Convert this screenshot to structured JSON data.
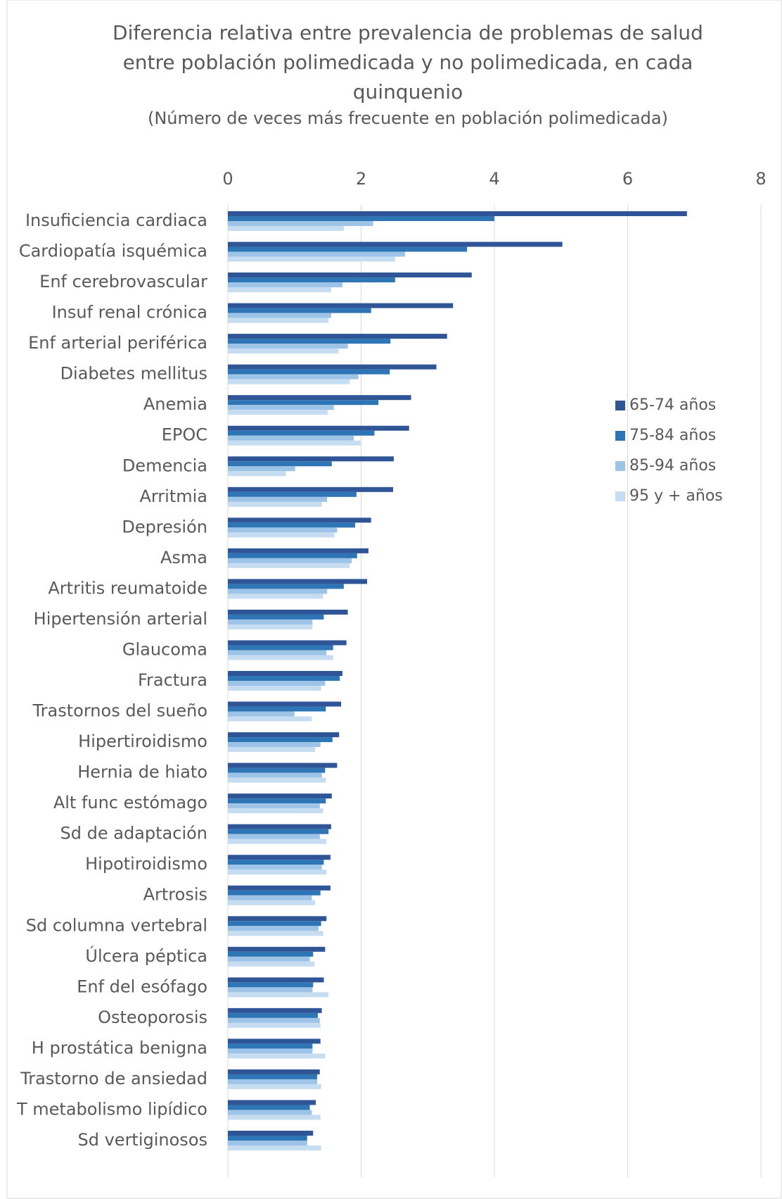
{
  "chart_data": {
    "type": "bar",
    "orientation": "horizontal",
    "title": "Diferencia relativa entre prevalencia de problemas de salud entre población polimedicada y no polimedicada, en cada quinquenio",
    "subtitle": "(Número de veces más frecuente en población polimedicada)",
    "categories": [
      "Insuficiencia cardiaca",
      "Cardiopatía isquémica",
      "Enf cerebrovascular",
      "Insuf renal crónica",
      "Enf arterial periférica",
      "Diabetes mellitus",
      "Anemia",
      "EPOC",
      "Demencia",
      "Arritmia",
      "Depresión",
      "Asma",
      "Artritis reumatoide",
      "Hipertensión arterial",
      "Glaucoma",
      "Fractura",
      "Trastornos del sueño",
      "Hipertiroidismo",
      "Hernia de hiato",
      "Alt func estómago",
      "Sd de adaptación",
      "Hipotiroidismo",
      "Artrosis",
      "Sd columna vertebral",
      "Úlcera péptica",
      "Enf del esófago",
      "Osteoporosis",
      "H prostática benigna",
      "Trastorno de ansiedad",
      "T metabolismo lipídico",
      "Sd vertiginosos"
    ],
    "series": [
      {
        "name": "65-74 años",
        "color": "#2f5597",
        "values": [
          6.89,
          5.02,
          3.66,
          3.38,
          3.29,
          3.13,
          2.75,
          2.72,
          2.49,
          2.48,
          2.15,
          2.11,
          2.09,
          1.8,
          1.78,
          1.72,
          1.7,
          1.67,
          1.64,
          1.56,
          1.55,
          1.54,
          1.54,
          1.48,
          1.46,
          1.44,
          1.41,
          1.39,
          1.38,
          1.32,
          1.28
        ]
      },
      {
        "name": "75-84 años",
        "color": "#2e75b6",
        "values": [
          4.0,
          3.59,
          2.51,
          2.15,
          2.44,
          2.43,
          2.26,
          2.2,
          1.56,
          1.93,
          1.91,
          1.94,
          1.74,
          1.44,
          1.58,
          1.68,
          1.47,
          1.57,
          1.46,
          1.47,
          1.51,
          1.44,
          1.39,
          1.4,
          1.28,
          1.28,
          1.35,
          1.27,
          1.34,
          1.23,
          1.19
        ]
      },
      {
        "name": "85-94 años",
        "color": "#9dc3e6",
        "values": [
          2.18,
          2.66,
          1.72,
          1.55,
          1.8,
          1.96,
          1.59,
          1.89,
          1.01,
          1.49,
          1.64,
          1.86,
          1.49,
          1.27,
          1.48,
          1.46,
          1.0,
          1.39,
          1.41,
          1.38,
          1.38,
          1.41,
          1.26,
          1.36,
          1.23,
          1.27,
          1.38,
          1.27,
          1.34,
          1.26,
          1.19
        ]
      },
      {
        "name": "95 y + años",
        "color": "#c6dcf1",
        "values": [
          1.74,
          2.51,
          1.55,
          1.51,
          1.66,
          1.83,
          1.5,
          1.99,
          0.87,
          1.41,
          1.6,
          1.83,
          1.43,
          1.27,
          1.58,
          1.4,
          1.26,
          1.31,
          1.47,
          1.43,
          1.48,
          1.48,
          1.31,
          1.43,
          1.3,
          1.51,
          1.39,
          1.46,
          1.4,
          1.39,
          1.4
        ]
      }
    ],
    "xlim": [
      0,
      8
    ],
    "xticks": [
      0,
      2,
      4,
      6,
      8
    ],
    "grid": true,
    "legend": "right"
  }
}
